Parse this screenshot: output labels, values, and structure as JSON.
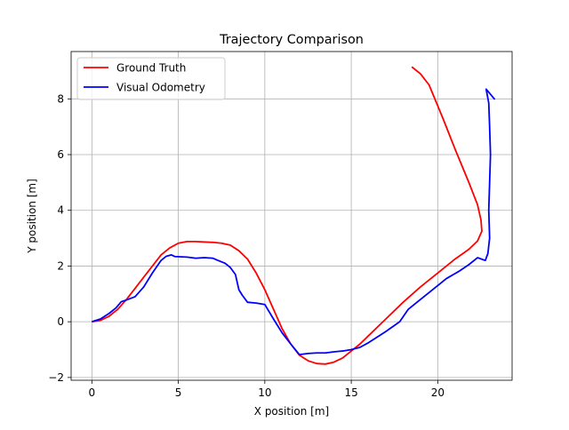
{
  "chart_data": {
    "type": "line",
    "title": "Trajectory Comparison",
    "xlabel": "X position [m]",
    "ylabel": "Y position [m]",
    "xlim": [
      -1.2,
      24.3
    ],
    "ylim": [
      -2.1,
      9.7
    ],
    "xticks": [
      0,
      5,
      10,
      15,
      20
    ],
    "yticks": [
      -2,
      0,
      2,
      4,
      6,
      8
    ],
    "grid": true,
    "legend_position": "upper-left",
    "series": [
      {
        "name": "Ground Truth",
        "color": "#ff0000",
        "points": [
          [
            0,
            0
          ],
          [
            0.5,
            0.05
          ],
          [
            1.0,
            0.2
          ],
          [
            1.5,
            0.45
          ],
          [
            2.0,
            0.8
          ],
          [
            2.5,
            1.2
          ],
          [
            3.0,
            1.6
          ],
          [
            3.5,
            2.0
          ],
          [
            4.0,
            2.4
          ],
          [
            4.5,
            2.65
          ],
          [
            5.0,
            2.82
          ],
          [
            5.5,
            2.88
          ],
          [
            6.0,
            2.88
          ],
          [
            7.0,
            2.85
          ],
          [
            7.5,
            2.82
          ],
          [
            8.0,
            2.75
          ],
          [
            8.5,
            2.55
          ],
          [
            9.0,
            2.25
          ],
          [
            9.5,
            1.75
          ],
          [
            10.0,
            1.15
          ],
          [
            10.5,
            0.45
          ],
          [
            11.0,
            -0.25
          ],
          [
            11.5,
            -0.8
          ],
          [
            12.0,
            -1.2
          ],
          [
            12.5,
            -1.4
          ],
          [
            13.0,
            -1.5
          ],
          [
            13.5,
            -1.52
          ],
          [
            14.0,
            -1.45
          ],
          [
            14.5,
            -1.3
          ],
          [
            15.0,
            -1.05
          ],
          [
            15.5,
            -0.8
          ],
          [
            16.0,
            -0.5
          ],
          [
            17.0,
            0.1
          ],
          [
            18.0,
            0.7
          ],
          [
            19.0,
            1.25
          ],
          [
            20.0,
            1.75
          ],
          [
            21.0,
            2.25
          ],
          [
            21.8,
            2.6
          ],
          [
            22.3,
            2.9
          ],
          [
            22.55,
            3.25
          ],
          [
            22.5,
            3.65
          ],
          [
            22.3,
            4.2
          ],
          [
            21.8,
            5.0
          ],
          [
            21.0,
            6.2
          ],
          [
            20.3,
            7.3
          ],
          [
            19.5,
            8.5
          ],
          [
            19.0,
            8.9
          ],
          [
            18.5,
            9.15
          ]
        ]
      },
      {
        "name": "Visual Odometry",
        "color": "#0000ff",
        "points": [
          [
            0,
            0
          ],
          [
            0.5,
            0.1
          ],
          [
            1.0,
            0.3
          ],
          [
            1.4,
            0.5
          ],
          [
            1.7,
            0.72
          ],
          [
            2.0,
            0.78
          ],
          [
            2.5,
            0.9
          ],
          [
            3.0,
            1.25
          ],
          [
            3.5,
            1.75
          ],
          [
            4.0,
            2.2
          ],
          [
            4.3,
            2.35
          ],
          [
            4.6,
            2.4
          ],
          [
            4.8,
            2.34
          ],
          [
            5.5,
            2.32
          ],
          [
            6.0,
            2.28
          ],
          [
            6.5,
            2.3
          ],
          [
            7.0,
            2.28
          ],
          [
            7.3,
            2.2
          ],
          [
            7.7,
            2.1
          ],
          [
            8.0,
            1.95
          ],
          [
            8.3,
            1.7
          ],
          [
            8.5,
            1.15
          ],
          [
            8.7,
            0.95
          ],
          [
            9.0,
            0.7
          ],
          [
            9.5,
            0.67
          ],
          [
            10.0,
            0.62
          ],
          [
            10.5,
            0.1
          ],
          [
            11.0,
            -0.4
          ],
          [
            11.5,
            -0.8
          ],
          [
            12.0,
            -1.18
          ],
          [
            12.5,
            -1.14
          ],
          [
            13.0,
            -1.12
          ],
          [
            13.5,
            -1.12
          ],
          [
            14.0,
            -1.08
          ],
          [
            14.5,
            -1.05
          ],
          [
            15.0,
            -1.0
          ],
          [
            15.5,
            -0.92
          ],
          [
            16.0,
            -0.75
          ],
          [
            17.0,
            -0.35
          ],
          [
            17.8,
            0.0
          ],
          [
            18.3,
            0.45
          ],
          [
            19.0,
            0.8
          ],
          [
            19.8,
            1.2
          ],
          [
            20.5,
            1.55
          ],
          [
            21.2,
            1.8
          ],
          [
            21.8,
            2.05
          ],
          [
            22.3,
            2.3
          ],
          [
            22.75,
            2.2
          ],
          [
            22.9,
            2.45
          ],
          [
            23.0,
            3.0
          ],
          [
            22.95,
            4.0
          ],
          [
            23.0,
            5.0
          ],
          [
            23.05,
            6.0
          ],
          [
            23.0,
            7.0
          ],
          [
            22.95,
            7.85
          ],
          [
            22.8,
            8.35
          ],
          [
            23.3,
            7.98
          ]
        ]
      }
    ]
  }
}
